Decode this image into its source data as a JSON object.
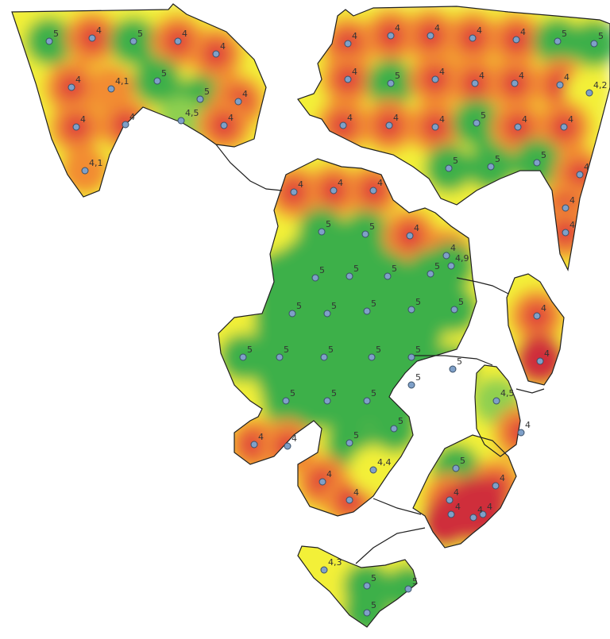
{
  "colors": {
    "green": "#3cb04a",
    "light_green": "#8fd050",
    "yellow": "#f3f038",
    "orange": "#f28c30",
    "red": "#e0453a",
    "dark_red": "#cf2e3a",
    "point_fill": "#7fa0c8",
    "point_stroke": "#3a5068",
    "outline": "#202020"
  },
  "points": [
    {
      "label": "5",
      "v": 5
    },
    {
      "label": "4",
      "v": 4
    },
    {
      "label": "5",
      "v": 5
    },
    {
      "label": "4",
      "v": 4
    },
    {
      "label": "4",
      "v": 4
    },
    {
      "label": "4",
      "v": 4
    },
    {
      "label": "4,1",
      "v": 4.1
    },
    {
      "label": "5",
      "v": 5
    },
    {
      "label": "5",
      "v": 5
    },
    {
      "label": "4",
      "v": 4
    },
    {
      "label": "4,5",
      "v": 4.5
    },
    {
      "label": "4",
      "v": 4
    },
    {
      "label": "4",
      "v": 4
    },
    {
      "label": "4",
      "v": 4
    },
    {
      "label": "4,1",
      "v": 4.1
    },
    {
      "label": "4",
      "v": 4
    },
    {
      "label": "4",
      "v": 4
    },
    {
      "label": "4",
      "v": 4
    },
    {
      "label": "4",
      "v": 4
    },
    {
      "label": "4",
      "v": 4
    },
    {
      "label": "5",
      "v": 5
    },
    {
      "label": "5",
      "v": 5
    },
    {
      "label": "4",
      "v": 4
    },
    {
      "label": "5",
      "v": 5
    },
    {
      "label": "4",
      "v": 4
    },
    {
      "label": "4",
      "v": 4
    },
    {
      "label": "4",
      "v": 4
    },
    {
      "label": "4",
      "v": 4
    },
    {
      "label": "4,2",
      "v": 4.2
    },
    {
      "label": "4",
      "v": 4
    },
    {
      "label": "4",
      "v": 4
    },
    {
      "label": "4",
      "v": 4
    },
    {
      "label": "5",
      "v": 5
    },
    {
      "label": "4",
      "v": 4
    },
    {
      "label": "4",
      "v": 4
    },
    {
      "label": "5",
      "v": 5
    },
    {
      "label": "5",
      "v": 5
    },
    {
      "label": "5",
      "v": 5
    },
    {
      "label": "4",
      "v": 4
    },
    {
      "label": "4",
      "v": 4
    },
    {
      "label": "4",
      "v": 4
    },
    {
      "label": "4",
      "v": 4
    },
    {
      "label": "4",
      "v": 4
    },
    {
      "label": "4",
      "v": 4
    },
    {
      "label": "5",
      "v": 5
    },
    {
      "label": "5",
      "v": 5
    },
    {
      "label": "4",
      "v": 4
    },
    {
      "label": "4",
      "v": 4
    },
    {
      "label": "5",
      "v": 5
    },
    {
      "label": "5",
      "v": 5
    },
    {
      "label": "5",
      "v": 5
    },
    {
      "label": "5",
      "v": 5
    },
    {
      "label": "4,9",
      "v": 4.9
    },
    {
      "label": "5",
      "v": 5
    },
    {
      "label": "5",
      "v": 5
    },
    {
      "label": "5",
      "v": 5
    },
    {
      "label": "5",
      "v": 5
    },
    {
      "label": "5",
      "v": 5
    },
    {
      "label": "5",
      "v": 5
    },
    {
      "label": "5",
      "v": 5
    },
    {
      "label": "5",
      "v": 5
    },
    {
      "label": "5",
      "v": 5
    },
    {
      "label": "5",
      "v": 5
    },
    {
      "label": "5",
      "v": 5
    },
    {
      "label": "5",
      "v": 5
    },
    {
      "label": "5",
      "v": 5
    },
    {
      "label": "5",
      "v": 5
    },
    {
      "label": "5",
      "v": 5
    },
    {
      "label": "4",
      "v": 4
    },
    {
      "label": "4",
      "v": 4
    },
    {
      "label": "5",
      "v": 5
    },
    {
      "label": "5",
      "v": 5
    },
    {
      "label": "4",
      "v": 4
    },
    {
      "label": "4",
      "v": 4
    },
    {
      "label": "4,4",
      "v": 4.4
    },
    {
      "label": "4",
      "v": 4
    },
    {
      "label": "4",
      "v": 4
    },
    {
      "label": "4,5",
      "v": 4.5
    },
    {
      "label": "4",
      "v": 4
    },
    {
      "label": "5",
      "v": 5
    },
    {
      "label": "4",
      "v": 4
    },
    {
      "label": "4",
      "v": 4
    },
    {
      "label": "4",
      "v": 4
    },
    {
      "label": "4",
      "v": 4
    },
    {
      "label": "4",
      "v": 4
    },
    {
      "label": "4,3",
      "v": 4.3
    },
    {
      "label": "5",
      "v": 5
    },
    {
      "label": "5",
      "v": 5
    },
    {
      "label": "5",
      "v": 5
    },
    {
      "label": "4",
      "v": 4
    }
  ]
}
